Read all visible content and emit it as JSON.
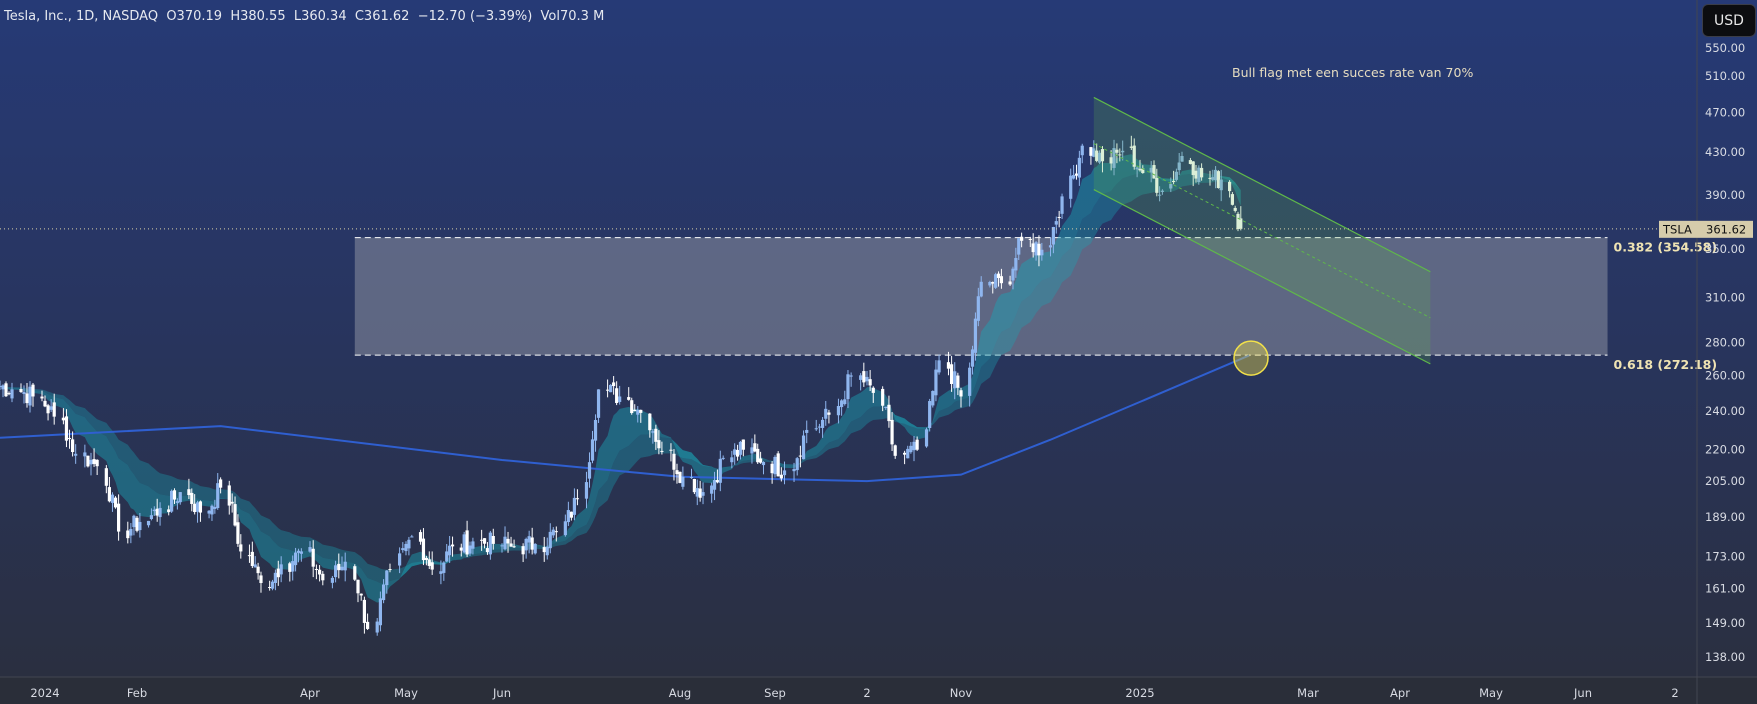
{
  "header": {
    "symbol_title": "Tesla, Inc., 1D, NASDAQ",
    "open": "O370.19",
    "high": "H380.55",
    "low": "L360.34",
    "close": "C361.62",
    "change": "−12.70 (−3.39%)",
    "volume": "Vol70.3 M"
  },
  "currency_button": "USD",
  "chart_data": {
    "type": "candlestick",
    "symbol": "TSLA",
    "interval": "1D",
    "scale": "log",
    "ylim": [
      135,
      560
    ],
    "y_ticks": [
      "550.00",
      "510.00",
      "470.00",
      "430.00",
      "390.00",
      "350.00",
      "310.00",
      "280.00",
      "260.00",
      "240.00",
      "220.00",
      "205.00",
      "189.00",
      "173.00",
      "161.00",
      "149.00",
      "138.00"
    ],
    "x_ticks": [
      {
        "label": "2024",
        "date": "2024-01-02"
      },
      {
        "label": "Feb",
        "date": "2024-02-01"
      },
      {
        "label": "Apr",
        "date": "2024-04-01"
      },
      {
        "label": "May",
        "date": "2024-05-01"
      },
      {
        "label": "Jun",
        "date": "2024-06-03"
      },
      {
        "label": "Aug",
        "date": "2024-08-01"
      },
      {
        "label": "Sep",
        "date": "2024-09-03"
      },
      {
        "label": "2",
        "date": "2024-10-02"
      },
      {
        "label": "Nov",
        "date": "2024-11-01"
      },
      {
        "label": "2025",
        "date": "2025-01-02"
      },
      {
        "label": "Mar",
        "date": "2025-03-03"
      },
      {
        "label": "Apr",
        "date": "2025-04-01"
      },
      {
        "label": "May",
        "date": "2025-05-01"
      },
      {
        "label": "Jun",
        "date": "2025-06-02"
      },
      {
        "label": "2",
        "date": "2025-07-02"
      }
    ],
    "weekly_closes": [
      [
        "2023-12-18",
        252
      ],
      [
        "2023-12-25",
        248
      ],
      [
        "2024-01-01",
        237
      ],
      [
        "2024-01-08",
        218
      ],
      [
        "2024-01-15",
        212
      ],
      [
        "2024-01-22",
        183
      ],
      [
        "2024-01-29",
        187
      ],
      [
        "2024-02-05",
        193
      ],
      [
        "2024-02-12",
        200
      ],
      [
        "2024-02-19",
        191
      ],
      [
        "2024-02-26",
        202
      ],
      [
        "2024-03-04",
        175
      ],
      [
        "2024-03-11",
        163
      ],
      [
        "2024-03-18",
        170
      ],
      [
        "2024-03-25",
        175
      ],
      [
        "2024-04-01",
        164
      ],
      [
        "2024-04-08",
        171
      ],
      [
        "2024-04-15",
        147
      ],
      [
        "2024-04-22",
        168
      ],
      [
        "2024-04-29",
        181
      ],
      [
        "2024-05-06",
        168
      ],
      [
        "2024-05-13",
        177
      ],
      [
        "2024-05-20",
        179
      ],
      [
        "2024-05-27",
        178
      ],
      [
        "2024-06-03",
        177
      ],
      [
        "2024-06-10",
        178
      ],
      [
        "2024-06-17",
        183
      ],
      [
        "2024-06-24",
        197
      ],
      [
        "2024-07-01",
        252
      ],
      [
        "2024-07-08",
        248
      ],
      [
        "2024-07-15",
        239
      ],
      [
        "2024-07-22",
        219
      ],
      [
        "2024-07-29",
        207
      ],
      [
        "2024-08-05",
        200
      ],
      [
        "2024-08-12",
        216
      ],
      [
        "2024-08-19",
        220
      ],
      [
        "2024-08-26",
        214
      ],
      [
        "2024-09-02",
        210
      ],
      [
        "2024-09-09",
        230
      ],
      [
        "2024-09-16",
        238
      ],
      [
        "2024-09-23",
        260
      ],
      [
        "2024-09-30",
        250
      ],
      [
        "2024-10-07",
        217
      ],
      [
        "2024-10-14",
        220
      ],
      [
        "2024-10-21",
        269
      ],
      [
        "2024-10-28",
        248
      ],
      [
        "2024-11-04",
        321
      ],
      [
        "2024-11-11",
        320
      ],
      [
        "2024-11-18",
        352
      ],
      [
        "2024-11-25",
        345
      ],
      [
        "2024-12-02",
        389
      ],
      [
        "2024-12-09",
        436
      ],
      [
        "2024-12-16",
        421
      ],
      [
        "2024-12-23",
        431
      ],
      [
        "2024-12-30",
        410
      ],
      [
        "2025-01-06",
        394
      ],
      [
        "2025-01-13",
        426
      ],
      [
        "2025-01-20",
        406
      ],
      [
        "2025-01-27",
        404
      ],
      [
        "2025-02-03",
        361.62
      ]
    ],
    "ma_long": [
      [
        "2023-12-18",
        226
      ],
      [
        "2024-03-01",
        232
      ],
      [
        "2024-06-03",
        215
      ],
      [
        "2024-08-01",
        207
      ],
      [
        "2024-10-02",
        205
      ],
      [
        "2024-11-01",
        208
      ],
      [
        "2024-12-02",
        225
      ],
      [
        "2025-01-02",
        245
      ],
      [
        "2025-02-10",
        272
      ]
    ],
    "last_price": {
      "label": "TSLA",
      "value": "361.62"
    },
    "fib_levels": [
      {
        "label": "0.382 (354.58)",
        "value": 354.58
      },
      {
        "label": "0.618 (272.18)",
        "value": 272.18
      }
    ],
    "fib_zone": {
      "from": "2024-04-15",
      "to": "2025-06-10"
    },
    "channel": {
      "start": "2024-12-17",
      "end": "2025-04-11",
      "top_start": 486,
      "bottom_start": 395
    },
    "annotation": "Bull flag met een succes rate van 70%",
    "colors": {
      "up": "#8fb6ef",
      "down": "#ffffff",
      "ma": "#2f5fd0",
      "ribbon": "#1aa3b5",
      "channel": "#5fb84a",
      "fib_zone": "#8a90a0",
      "circle": "#f2e14a"
    }
  }
}
